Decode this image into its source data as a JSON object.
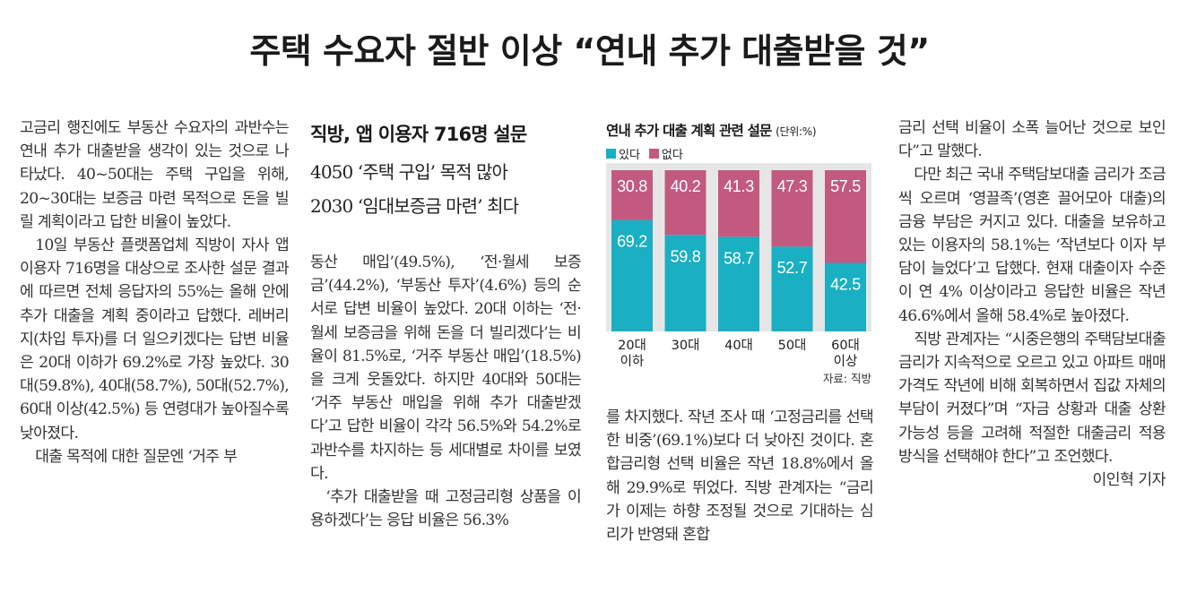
{
  "article": {
    "headline": "주택 수요자 절반 이상 “연내 추가 대출받을 것”",
    "subtitle": "직방, 앱 이용자 716명 설문",
    "subheadline_1": "4050 ‘주택 구입’ 목적 많아",
    "subheadline_2": "2030 ‘임대보증금 마련’ 최다",
    "col1": [
      "고금리 행진에도 부동산 수요자의 과반수는 연내 추가 대출받을 생각이 있는 것으로 나타났다. 40~50대는 주택 구입을 위해, 20~30대는 보증금 마련 목적으로 돈을 빌릴 계획이라고 답한 비율이 높았다.",
      "10일 부동산 플랫폼업체 직방이 자사 앱 이용자 716명을 대상으로 조사한 설문 결과에 따르면 전체 응답자의 55%는 올해 안에 추가 대출을 계획 중이라고 답했다. 레버리지(차입 투자)를 더 일으키겠다는 답변 비율은 20대 이하가 69.2%로 가장 높았다. 30대(59.8%), 40대(58.7%), 50대(52.7%), 60대 이상(42.5%) 등 연령대가 높아질수록 낮아졌다.",
      "대출 목적에 대한 질문엔 ‘거주 부"
    ],
    "col2": [
      "동산 매입’(49.5%), ‘전·월세 보증금’(44.2%), ‘부동산 투자’(4.6%) 등의 순서로 답변 비율이 높았다. 20대 이하는 ‘전·월세 보증금을 위해 돈을 더 빌리겠다’는 비율이 81.5%로, ‘거주 부동산 매입’(18.5%)을 크게 웃돌았다. 하지만 40대와 50대는 ‘거주 부동산 매입을 위해 추가 대출받겠다’고 답한 비율이 각각 56.5%와 54.2%로 과반수를 차지하는 등 세대별로 차이를 보였다.",
      "‘추가 대출받을 때 고정금리형 상품을 이용하겠다’는 응답 비율은 56.3%"
    ],
    "col3": [
      "를 차지했다. 작년 조사 때 ‘고정금리를 선택한 비중’(69.1%)보다 더 낮아진 것이다. 혼합금리형 선택 비율은 작년 18.8%에서 올해 29.9%로 뛰었다. 직방 관계자는 “금리가 이제는 하향 조정될 것으로 기대하는 심리가 반영돼 혼합"
    ],
    "col4": [
      "금리 선택 비율이 소폭 늘어난 것으로 보인다”고 말했다.",
      "다만 최근 국내 주택담보대출 금리가 조금씩 오르며 ‘영끌족’(영혼 끌어모아 대출)의 금융 부담은 커지고 있다. 대출을 보유하고 있는 이용자의 58.1%는 ‘작년보다 이자 부담이 늘었다’고 답했다. 현재 대출이자 수준이 연 4% 이상이라고 응답한 비율은 작년 46.6%에서 올해 58.4%로 높아졌다.",
      "직방 관계자는 “시중은행의 주택담보대출 금리가 지속적으로 오르고 있고 아파트 매매가격도 작년에 비해 회복하면서 집값 자체의 부담이 커졌다”며 “자금 상황과 대출 상환 가능성 등을 고려해 적절한 대출금리 적용 방식을 선택해야 한다”고 조언했다."
    ],
    "byline": "이인혁 기자"
  },
  "chart": {
    "title": "연내 추가 대출 계획 관련 설문",
    "unit": "(단위:%)",
    "source": "자료: 직방",
    "colors": {
      "yes": "#1aafc2",
      "no": "#c25a80"
    }
  },
  "chart_data": {
    "type": "bar",
    "stacked": true,
    "categories": [
      "20대\n이하",
      "30대",
      "40대",
      "50대",
      "60대\n이상"
    ],
    "series": [
      {
        "name": "있다",
        "values": [
          69.2,
          59.8,
          58.7,
          52.7,
          42.5
        ]
      },
      {
        "name": "없다",
        "values": [
          30.8,
          40.2,
          41.3,
          47.3,
          57.5
        ]
      }
    ],
    "title": "연내 추가 대출 계획 관련 설문",
    "ylim": [
      0,
      100
    ],
    "legend": "top-left",
    "grid": false
  }
}
